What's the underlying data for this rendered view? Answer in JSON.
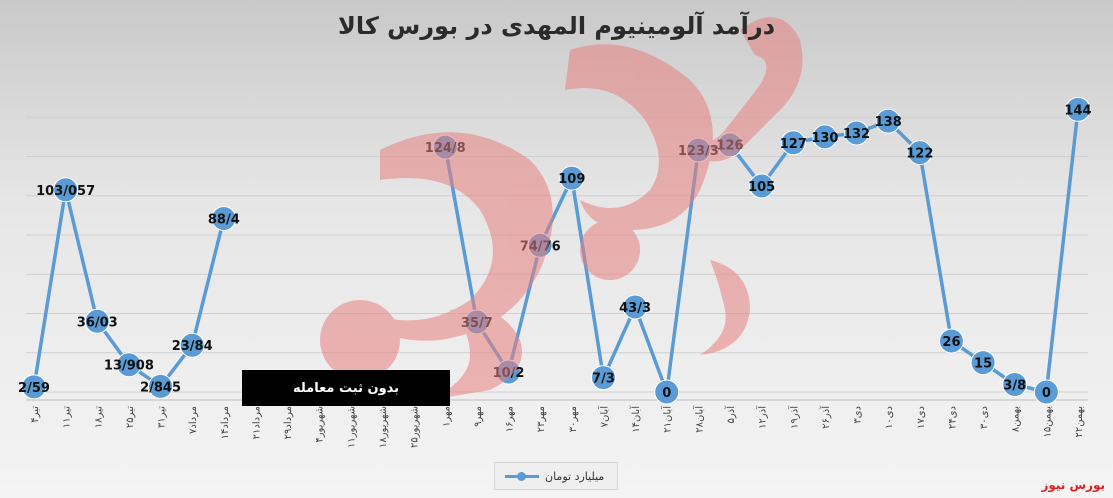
{
  "title": "درآمد آلومینیوم المهدی در بورس کالا",
  "no_trade_label": "بدون ثبت معامله",
  "legend_label": "میلیارد تومان",
  "brand": "بورس نیوز",
  "watermark_text": "بورس نیوز",
  "colors": {
    "series": "#5b9bd5",
    "label": "#111111",
    "brand": "#e02020",
    "watermark": "#e88080"
  },
  "chart_data": {
    "type": "line",
    "title": "درآمد آلومینیوم المهدی در بورس کالا",
    "xlabel": "",
    "ylabel": "",
    "ylim": [
      0,
      160
    ],
    "grid": true,
    "legend": "bottom",
    "categories": [
      "۴تیر",
      "۱۱تیر",
      "۱۸تیر",
      "۲۵تیر",
      "۳۱تیر",
      "۷مرداد",
      "۱۴مرداد",
      "۲۱مرداد",
      "۲۹مرداد",
      "۴شهریور",
      "۱۱شهریور",
      "۱۸شهریور",
      "۲۵شهریور",
      "۱مهر",
      "۹مهر",
      "۱۶مهر",
      "۲۳مهر",
      "۳۰مهر",
      "۷آبان",
      "۱۴آبان",
      "۲۱آبان",
      "۲۸آبان",
      "۵آذر",
      "۱۲آذر",
      "۱۹آذر",
      "۲۶آذر",
      "۳دی",
      "۱۰دی",
      "۱۷دی",
      "۲۴دی",
      "۳۰دی",
      "۸بهمن",
      "۱۵بهمن",
      "۲۲بهمن"
    ],
    "series": [
      {
        "name": "میلیارد تومان",
        "values": [
          2.59,
          103.057,
          36.03,
          13.908,
          2.845,
          23.84,
          88.4,
          null,
          null,
          null,
          null,
          null,
          null,
          124.8,
          35.7,
          10.2,
          74.76,
          109,
          7.3,
          43.3,
          0,
          123.3,
          126,
          105,
          127,
          130,
          132,
          138,
          122,
          26,
          15,
          3.8,
          0,
          144
        ],
        "labels": [
          "2/59",
          "103/057",
          "36/03",
          "13/908",
          "2/845",
          "23/84",
          "88/4",
          "",
          "",
          "",
          "",
          "",
          "",
          "124/8",
          "35/7",
          "10/2",
          "74/76",
          "109",
          "7/3",
          "43/3",
          "0",
          "123/3",
          "126",
          "105",
          "127",
          "130",
          "132",
          "138",
          "122",
          "26",
          "15",
          "3/8",
          "0",
          "144"
        ]
      }
    ]
  }
}
